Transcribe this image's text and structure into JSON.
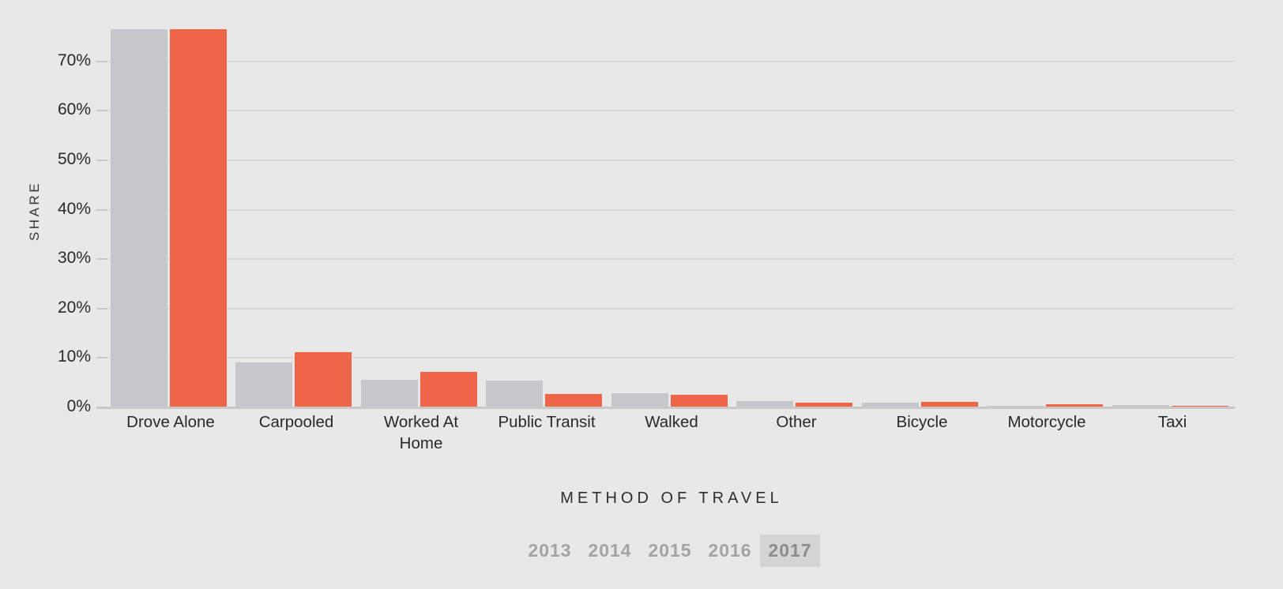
{
  "page": {
    "background": "#e8e8e8"
  },
  "chart_data": {
    "type": "bar",
    "title": "",
    "xlabel": "METHOD OF TRAVEL",
    "ylabel": "SHARE",
    "categories": [
      "Drove Alone",
      "Carpooled",
      "Worked At Home",
      "Public Transit",
      "Walked",
      "Other",
      "Bicycle",
      "Motorcycle",
      "Taxi"
    ],
    "series": [
      {
        "name": "series-1-gray",
        "color": "#c6c7cb",
        "values": [
          76.3,
          9.0,
          5.4,
          5.2,
          2.8,
          1.1,
          0.8,
          0.1,
          0.4
        ]
      },
      {
        "name": "series-2-orange",
        "color": "#ef6548",
        "values": [
          76.4,
          11.1,
          7.0,
          2.5,
          2.4,
          0.8,
          0.9,
          0.5,
          0.1
        ]
      }
    ],
    "y_ticks": [
      "0%",
      "10%",
      "20%",
      "30%",
      "40%",
      "50%",
      "60%",
      "70%"
    ],
    "ylim": [
      0,
      77
    ],
    "grid": "horizontal",
    "legend": "none",
    "units": "percent"
  },
  "year_selector": {
    "options": [
      "2013",
      "2014",
      "2015",
      "2016",
      "2017"
    ],
    "selected": "2017",
    "selected_bg": "#d4d4d4",
    "text_color": "#a3a3a3",
    "selected_text_color": "#8c8c8c"
  }
}
